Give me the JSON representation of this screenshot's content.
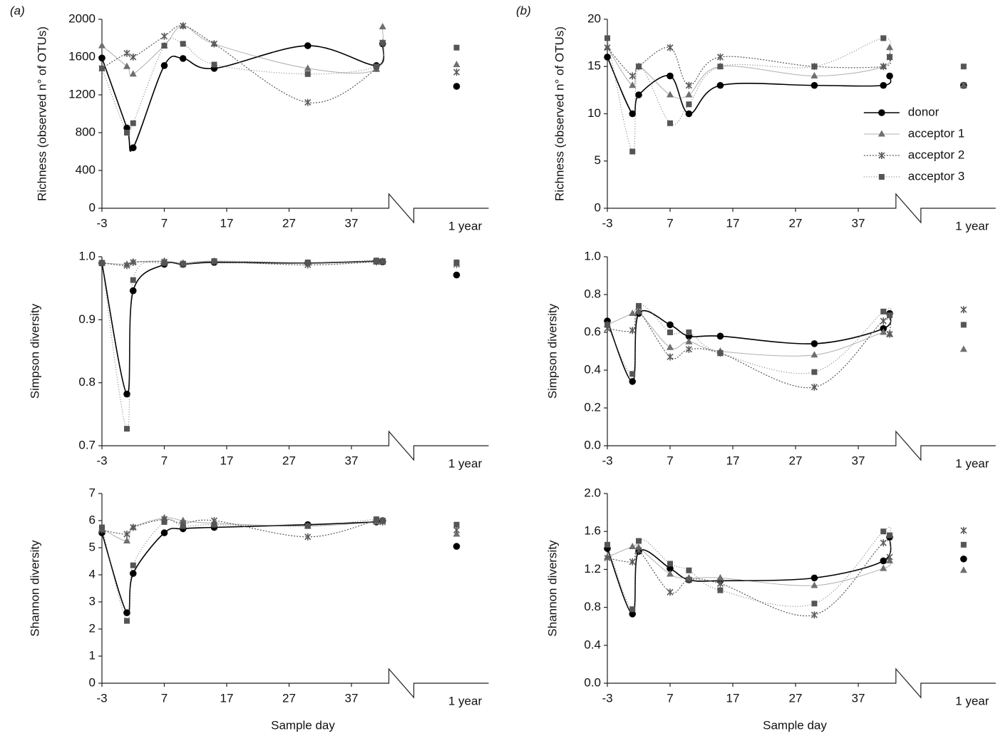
{
  "chart_data": [
    {
      "type": "line",
      "panel_label": "(a)",
      "ylabel": "Richness (observed n° of OTUs)",
      "x": [
        -3,
        1,
        2,
        7,
        10,
        15,
        30,
        41,
        42
      ],
      "xlim": [
        -3,
        43
      ],
      "xticks": [
        -3,
        7,
        17,
        27,
        37
      ],
      "break_label": "1 year",
      "ylim": [
        0,
        2000
      ],
      "yticks": [
        0,
        400,
        800,
        1200,
        1600,
        2000
      ],
      "series": [
        {
          "name": "donor",
          "color": "#000000",
          "marker": "circle",
          "values": [
            1590,
            850,
            640,
            1510,
            1585,
            1480,
            1720,
            1510,
            1740
          ],
          "year_value": 1290
        },
        {
          "name": "acceptor 1",
          "color": "#6f6f6f",
          "marker": "triangle",
          "values": [
            1720,
            1500,
            1420,
            1720,
            1930,
            1740,
            1480,
            1470,
            1920
          ],
          "year_value": 1520
        },
        {
          "name": "acceptor 2",
          "color": "#5a5a5a",
          "marker": "cross",
          "values": [
            1480,
            1640,
            1600,
            1820,
            1930,
            1740,
            1120,
            1480,
            1750
          ],
          "year_value": 1440
        },
        {
          "name": "acceptor 3",
          "color": "#555555",
          "marker": "square",
          "values": [
            1480,
            800,
            900,
            1720,
            1740,
            1520,
            1420,
            1500,
            1750
          ],
          "year_value": 1700
        }
      ]
    },
    {
      "type": "line",
      "ylabel": "Simpson diversity",
      "x": [
        -3,
        1,
        2,
        7,
        10,
        15,
        30,
        41,
        42
      ],
      "xlim": [
        -3,
        43
      ],
      "xticks": [
        -3,
        7,
        17,
        27,
        37
      ],
      "break_label": "1 year",
      "ylim": [
        0.7,
        1.0
      ],
      "yticks": [
        0.7,
        0.8,
        0.9,
        {
          "value": 1.0,
          "label": "1.0"
        }
      ],
      "series": [
        {
          "name": "donor",
          "color": "#000000",
          "marker": "circle",
          "values": [
            0.99,
            0.782,
            0.946,
            0.988,
            0.988,
            0.991,
            0.99,
            0.993,
            0.992
          ],
          "year_value": 0.971
        },
        {
          "name": "acceptor 1",
          "color": "#6f6f6f",
          "marker": "triangle",
          "values": [
            0.99,
            0.988,
            0.992,
            0.993,
            0.99,
            0.993,
            0.99,
            0.993,
            0.993
          ],
          "year_value": 0.99
        },
        {
          "name": "acceptor 2",
          "color": "#5a5a5a",
          "marker": "cross",
          "values": [
            0.99,
            0.986,
            0.991,
            0.992,
            0.988,
            0.992,
            0.987,
            0.992,
            0.992
          ],
          "year_value": 0.988
        },
        {
          "name": "acceptor 3",
          "color": "#555555",
          "marker": "square",
          "values": [
            0.99,
            0.727,
            0.963,
            0.99,
            0.989,
            0.993,
            0.991,
            0.994,
            0.993
          ],
          "year_value": 0.991
        }
      ]
    },
    {
      "type": "line",
      "ylabel": "Shannon diversity",
      "xlabel": "Sample day",
      "x": [
        -3,
        1,
        2,
        7,
        10,
        15,
        30,
        41,
        42
      ],
      "xlim": [
        -3,
        43
      ],
      "xticks": [
        -3,
        7,
        17,
        27,
        37
      ],
      "break_label": "1 year",
      "ylim": [
        0,
        7
      ],
      "yticks": [
        0,
        1,
        2,
        3,
        4,
        5,
        6,
        7
      ],
      "series": [
        {
          "name": "donor",
          "color": "#000000",
          "marker": "circle",
          "values": [
            5.55,
            2.6,
            4.05,
            5.55,
            5.7,
            5.75,
            5.85,
            5.95,
            6.0
          ],
          "year_value": 5.05
        },
        {
          "name": "acceptor 1",
          "color": "#6f6f6f",
          "marker": "triangle",
          "values": [
            5.7,
            5.25,
            5.75,
            6.1,
            6.0,
            5.9,
            5.8,
            5.95,
            6.0
          ],
          "year_value": 5.5
        },
        {
          "name": "acceptor 2",
          "color": "#5a5a5a",
          "marker": "cross",
          "values": [
            5.65,
            5.5,
            5.75,
            6.05,
            5.9,
            6.0,
            5.4,
            6.0,
            5.95
          ],
          "year_value": 5.65
        },
        {
          "name": "acceptor 3",
          "color": "#555555",
          "marker": "square",
          "values": [
            5.75,
            2.3,
            4.35,
            5.95,
            5.8,
            5.85,
            5.8,
            6.05,
            6.0
          ],
          "year_value": 5.85
        }
      ]
    },
    {
      "type": "line",
      "panel_label": "(b)",
      "ylabel": "Richness (observed n° of OTUs)",
      "legend": "right",
      "x": [
        -3,
        1,
        2,
        7,
        10,
        15,
        30,
        41,
        42
      ],
      "xlim": [
        -3,
        43
      ],
      "xticks": [
        -3,
        7,
        17,
        27,
        37
      ],
      "break_label": "1 year",
      "ylim": [
        0,
        20
      ],
      "yticks": [
        0,
        5,
        10,
        15,
        20
      ],
      "series": [
        {
          "name": "donor",
          "color": "#000000",
          "marker": "circle",
          "values": [
            16,
            10,
            12,
            14,
            10,
            13,
            13,
            13,
            14
          ],
          "year_value": 13
        },
        {
          "name": "acceptor 1",
          "color": "#6f6f6f",
          "marker": "triangle",
          "values": [
            17,
            13,
            15,
            12,
            12,
            15,
            14,
            15,
            17
          ],
          "year_value": 13
        },
        {
          "name": "acceptor 2",
          "color": "#5a5a5a",
          "marker": "cross",
          "values": [
            17,
            14,
            15,
            17,
            13,
            16,
            15,
            15,
            16
          ],
          "year_value": 13
        },
        {
          "name": "acceptor 3",
          "color": "#555555",
          "marker": "square",
          "values": [
            18,
            6,
            15,
            9,
            11,
            15,
            15,
            18,
            16
          ],
          "year_value": 15
        }
      ]
    },
    {
      "type": "line",
      "ylabel": "Simpson diversity",
      "x": [
        -3,
        1,
        2,
        7,
        10,
        15,
        30,
        41,
        42
      ],
      "xlim": [
        -3,
        43
      ],
      "xticks": [
        -3,
        7,
        17,
        27,
        37
      ],
      "break_label": "1 year",
      "ylim": [
        0,
        1.0
      ],
      "yticks": [
        {
          "value": 0,
          "label": "0.0"
        },
        0.2,
        0.4,
        0.6,
        0.8,
        {
          "value": 1.0,
          "label": "1.0"
        }
      ],
      "series": [
        {
          "name": "donor",
          "color": "#000000",
          "marker": "circle",
          "values": [
            0.66,
            0.34,
            0.7,
            0.64,
            0.58,
            0.58,
            0.54,
            0.62,
            0.7
          ],
          "year_value": null
        },
        {
          "name": "acceptor 1",
          "color": "#6f6f6f",
          "marker": "triangle",
          "values": [
            0.64,
            0.7,
            0.71,
            0.52,
            0.55,
            0.5,
            0.48,
            0.6,
            0.59
          ],
          "year_value": 0.51
        },
        {
          "name": "acceptor 2",
          "color": "#5a5a5a",
          "marker": "cross",
          "values": [
            0.62,
            0.61,
            0.71,
            0.47,
            0.51,
            0.49,
            0.31,
            0.66,
            0.59
          ],
          "year_value": 0.72
        },
        {
          "name": "acceptor 3",
          "color": "#555555",
          "marker": "square",
          "values": [
            0.64,
            0.38,
            0.74,
            0.6,
            0.6,
            0.49,
            0.39,
            0.71,
            0.69
          ],
          "year_value": 0.64
        }
      ]
    },
    {
      "type": "line",
      "ylabel": "Shannon diversity",
      "xlabel": "Sample day",
      "x": [
        -3,
        1,
        2,
        7,
        10,
        15,
        30,
        41,
        42
      ],
      "xlim": [
        -3,
        43
      ],
      "xticks": [
        -3,
        7,
        17,
        27,
        37
      ],
      "break_label": "1 year",
      "ylim": [
        0,
        2.0
      ],
      "yticks": [
        {
          "value": 0,
          "label": "0.0"
        },
        0.4,
        0.8,
        1.2,
        1.6,
        {
          "value": 2.0,
          "label": "2.0"
        }
      ],
      "series": [
        {
          "name": "donor",
          "color": "#000000",
          "marker": "circle",
          "values": [
            1.42,
            0.73,
            1.39,
            1.21,
            1.09,
            1.08,
            1.11,
            1.29,
            1.54
          ],
          "year_value": 1.31
        },
        {
          "name": "acceptor 1",
          "color": "#6f6f6f",
          "marker": "triangle",
          "values": [
            1.33,
            1.44,
            1.43,
            1.15,
            1.11,
            1.11,
            1.03,
            1.21,
            1.29
          ],
          "year_value": 1.19
        },
        {
          "name": "acceptor 2",
          "color": "#5a5a5a",
          "marker": "cross",
          "values": [
            1.32,
            1.28,
            1.4,
            0.96,
            1.09,
            1.05,
            0.72,
            1.48,
            1.33
          ],
          "year_value": 1.61
        },
        {
          "name": "acceptor 3",
          "color": "#555555",
          "marker": "square",
          "values": [
            1.46,
            0.78,
            1.5,
            1.26,
            1.19,
            0.98,
            0.84,
            1.6,
            1.56
          ],
          "year_value": 1.46
        }
      ]
    }
  ]
}
